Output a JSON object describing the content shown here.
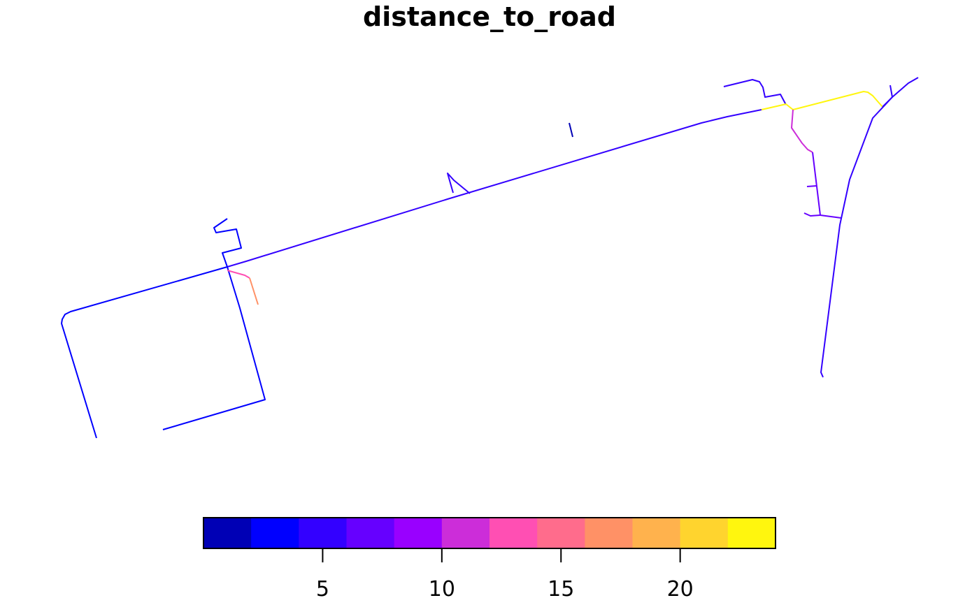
{
  "title": "distance_to_road",
  "legend": {
    "type": "continuous-binned",
    "range": [
      0,
      24
    ],
    "bin_width": 2,
    "bins": [
      {
        "from": 0,
        "to": 2,
        "color": "#0000B5"
      },
      {
        "from": 2,
        "to": 4,
        "color": "#0000FF"
      },
      {
        "from": 4,
        "to": 6,
        "color": "#3300FF"
      },
      {
        "from": 6,
        "to": 8,
        "color": "#6600FF"
      },
      {
        "from": 8,
        "to": 10,
        "color": "#9900FF"
      },
      {
        "from": 10,
        "to": 12,
        "color": "#CC2DD9"
      },
      {
        "from": 12,
        "to": 14,
        "color": "#FF4FB3"
      },
      {
        "from": 14,
        "to": 16,
        "color": "#FF6C8C"
      },
      {
        "from": 16,
        "to": 18,
        "color": "#FF9166"
      },
      {
        "from": 18,
        "to": 20,
        "color": "#FFB24D"
      },
      {
        "from": 20,
        "to": 22,
        "color": "#FFD42E"
      },
      {
        "from": 22,
        "to": 24,
        "color": "#FFF60E"
      }
    ],
    "ticks": [
      {
        "value": 5,
        "label": "5"
      },
      {
        "value": 10,
        "label": "10"
      },
      {
        "value": 15,
        "label": "15"
      },
      {
        "value": 20,
        "label": "20"
      }
    ]
  },
  "line_colors": {
    "c0": "#0000B5",
    "c1": "#0000FF",
    "c2": "#3300FF",
    "c3": "#6600FF",
    "c4": "#9900FF",
    "c5": "#CC2DD9",
    "c6": "#FF4FB3",
    "c8": "#FF9166",
    "c11": "#FFF60E"
  }
}
